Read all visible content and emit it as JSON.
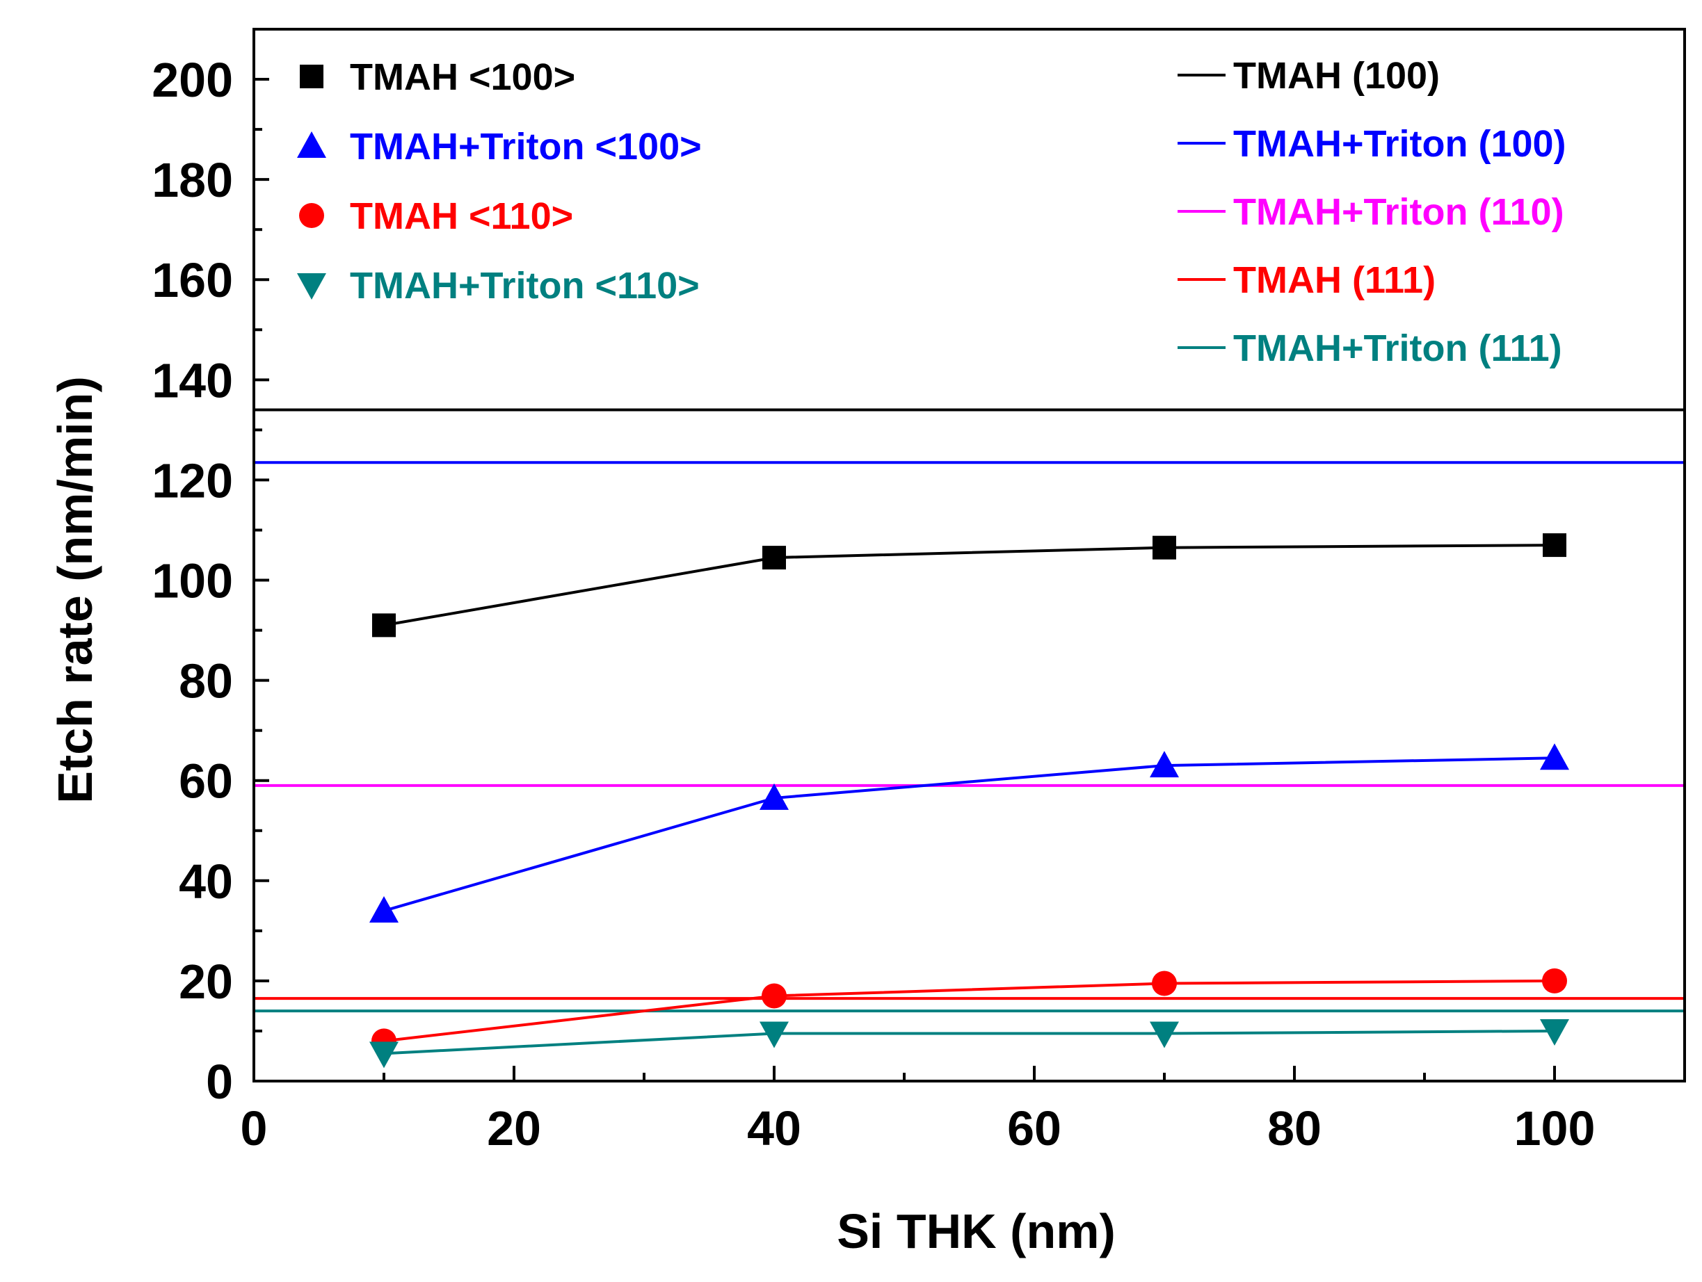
{
  "chart_data": {
    "type": "line",
    "xlabel": "Si THK (nm)",
    "ylabel": "Etch rate (nm/min)",
    "xlim": [
      0,
      110
    ],
    "ylim": [
      0,
      210
    ],
    "x_ticks": [
      "0",
      "20",
      "40",
      "60",
      "80",
      "100"
    ],
    "x_tick_values": [
      0,
      20,
      40,
      60,
      80,
      100
    ],
    "y_ticks": [
      "0",
      "20",
      "40",
      "60",
      "80",
      "100",
      "120",
      "140",
      "160",
      "180",
      "200"
    ],
    "y_tick_values": [
      0,
      20,
      40,
      60,
      80,
      100,
      120,
      140,
      160,
      180,
      200
    ],
    "grid": false,
    "series": [
      {
        "name": "TMAH <100>",
        "marker": "square",
        "color": "#000000",
        "x": [
          10,
          40,
          70,
          100
        ],
        "y": [
          91,
          104.5,
          106.5,
          107
        ]
      },
      {
        "name": "TMAH+Triton <100>",
        "marker": "triangle-up",
        "color": "#0000ff",
        "x": [
          10,
          40,
          70,
          100
        ],
        "y": [
          34,
          56.5,
          63,
          64.5
        ]
      },
      {
        "name": "TMAH <110>",
        "marker": "circle",
        "color": "#ff0000",
        "x": [
          10,
          40,
          70,
          100
        ],
        "y": [
          8,
          17,
          19.5,
          20
        ]
      },
      {
        "name": "TMAH+Triton <110>",
        "marker": "triangle-down",
        "color": "#008080",
        "x": [
          10,
          40,
          70,
          100
        ],
        "y": [
          5.5,
          9.5,
          9.5,
          10
        ]
      }
    ],
    "reference_lines": [
      {
        "name": "TMAH (100)",
        "color": "#000000",
        "y": 134
      },
      {
        "name": "TMAH+Triton (100)",
        "color": "#0000ff",
        "y": 123.5
      },
      {
        "name": "TMAH+Triton (110)",
        "color": "#ff00ff",
        "y": 59
      },
      {
        "name": "TMAH (111)",
        "color": "#ff0000",
        "y": 16.5
      },
      {
        "name": "TMAH+Triton (111)",
        "color": "#008080",
        "y": 14
      }
    ],
    "legend_markers_placement": "top-left",
    "legend_lines_placement": "top-right"
  }
}
